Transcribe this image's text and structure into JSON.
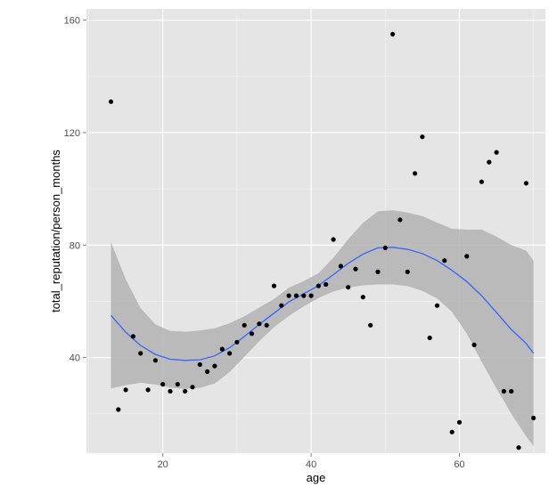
{
  "chart_data": {
    "type": "scatter",
    "title": "",
    "xlabel": "age",
    "ylabel": "total_reputation/person_months",
    "xlim": [
      9.7,
      71.6
    ],
    "ylim": [
      6,
      164
    ],
    "x_ticks": [
      20,
      40,
      60
    ],
    "x_tick_labels": [
      "20",
      "40",
      "60"
    ],
    "y_ticks": [
      40,
      80,
      120,
      160
    ],
    "y_tick_labels": [
      "40",
      "80",
      "120",
      "160"
    ],
    "grid": true,
    "legend": "none",
    "colors": {
      "panel_background": "#e5e5e5",
      "grid": "#ffffff",
      "points": "#000000",
      "smooth_line": "#3366ff",
      "confidence_band": "#b3b3b3"
    },
    "series": [
      {
        "kind": "points",
        "x": [
          13,
          14,
          15,
          16,
          17,
          18,
          19,
          20,
          21,
          22,
          23,
          24,
          25,
          26,
          27,
          28,
          29,
          30,
          31,
          32,
          33,
          34,
          35,
          36,
          37,
          38,
          39,
          40,
          41,
          42,
          43,
          44,
          45,
          46,
          47,
          48,
          49,
          50,
          51,
          52,
          53,
          54,
          55,
          56,
          57,
          58,
          59,
          60,
          61,
          62,
          63,
          64,
          65,
          66,
          67,
          68,
          69,
          70
        ],
        "y": [
          131,
          21.5,
          28.5,
          47.5,
          41.5,
          28.5,
          39,
          30.5,
          28,
          30.5,
          28,
          29.5,
          37.5,
          35,
          37,
          43,
          41.5,
          45.5,
          51.5,
          48.5,
          52,
          51.5,
          65.5,
          58.5,
          62,
          62,
          62,
          62,
          65.5,
          66,
          82,
          72.5,
          65,
          71.5,
          61.5,
          51.5,
          70.5,
          79,
          155,
          89,
          70.5,
          105.5,
          118.5,
          47,
          58.5,
          74.5,
          13.5,
          17,
          76,
          44.5,
          102.5,
          109.5,
          113,
          28,
          28,
          8,
          102,
          18.5
        ]
      },
      {
        "kind": "smooth",
        "x": [
          13,
          15,
          17,
          19,
          21,
          23,
          25,
          27,
          29,
          31,
          33,
          35,
          37,
          39,
          41,
          43,
          45,
          47,
          49,
          51,
          53,
          55,
          57,
          59,
          61,
          63,
          65,
          67,
          69,
          70
        ],
        "y": [
          55,
          49,
          44.3,
          41.1,
          39.4,
          39,
          39.2,
          40.6,
          43.5,
          47.5,
          51.8,
          55.8,
          59.8,
          62.7,
          65.6,
          69.5,
          73.5,
          76.8,
          79,
          79.2,
          78.5,
          77,
          74.5,
          71,
          67,
          62,
          56,
          50,
          45,
          41.5
        ],
        "lower": [
          29,
          30.2,
          31,
          30.4,
          29.3,
          28.8,
          29.2,
          30.8,
          34.8,
          40.3,
          45.8,
          50.8,
          54.8,
          58.2,
          61.2,
          63.5,
          64.9,
          65.7,
          66,
          66,
          65.4,
          63.7,
          61,
          56.2,
          48.5,
          38.5,
          29,
          20,
          12,
          8.5
        ],
        "upper": [
          81,
          67.8,
          57.6,
          51.8,
          49.5,
          49.2,
          49.6,
          50.4,
          52.2,
          54.7,
          57.8,
          60.8,
          64.8,
          67.2,
          70,
          75.5,
          82.1,
          87.9,
          92,
          92.4,
          91.6,
          90.3,
          88,
          85.8,
          85.5,
          85.5,
          83,
          80,
          78,
          74.5
        ]
      }
    ]
  }
}
